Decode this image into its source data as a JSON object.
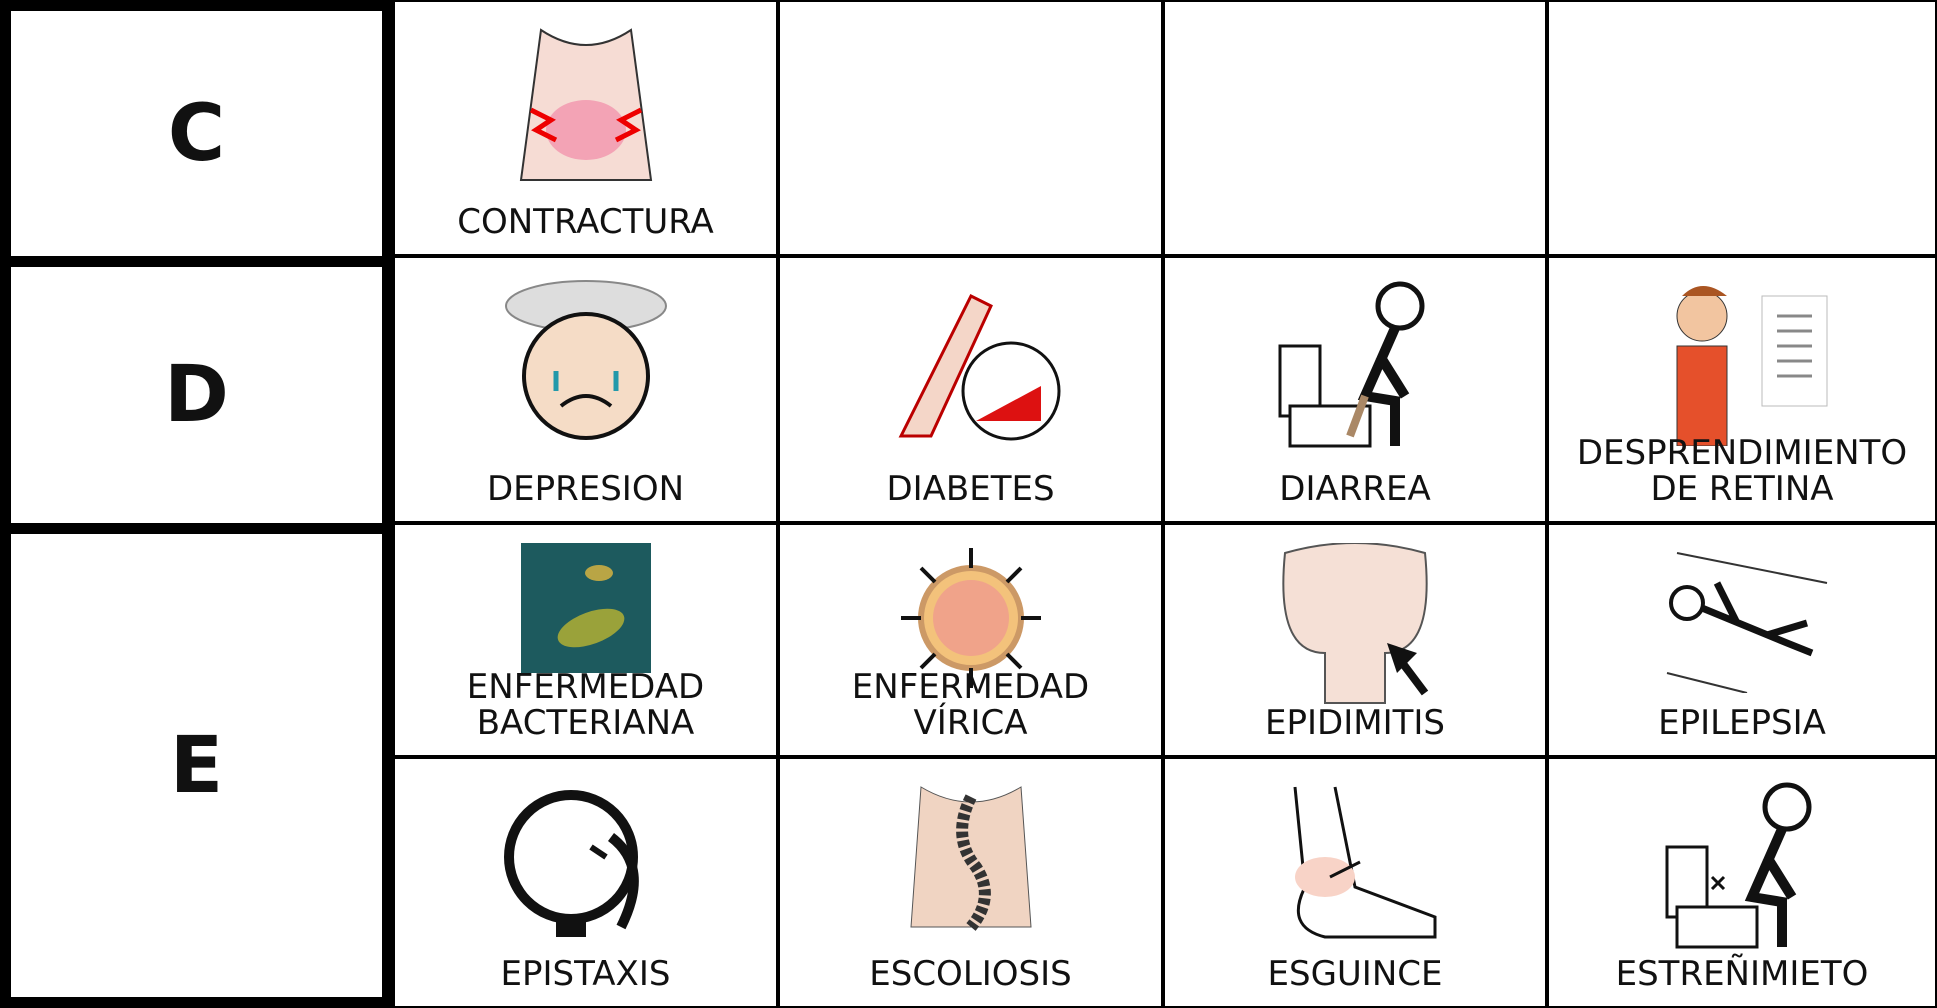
{
  "sections": [
    {
      "letter": "C",
      "rows": [
        [
          {
            "label": [
              "CONTRACTURA"
            ]
          },
          null,
          null,
          null
        ]
      ]
    },
    {
      "letter": "D",
      "rows": [
        [
          {
            "label": [
              "DEPRESION"
            ]
          },
          {
            "label": [
              "DIABETES"
            ]
          },
          {
            "label": [
              "DIARREA"
            ]
          },
          {
            "label": [
              "DESPRENDIMIENTO",
              "DE RETINA"
            ]
          }
        ]
      ]
    },
    {
      "letter": "E",
      "rows": [
        [
          {
            "label": [
              "ENFERMEDAD",
              "BACTERIANA"
            ]
          },
          {
            "label": [
              "ENFERMEDAD",
              "VÍRICA"
            ]
          },
          {
            "label": [
              "EPIDIMITIS"
            ]
          },
          {
            "label": [
              "EPILEPSIA"
            ]
          }
        ],
        [
          {
            "label": [
              "EPISTAXIS"
            ]
          },
          {
            "label": [
              "ESCOLIOSIS"
            ]
          },
          {
            "label": [
              "ESGUINCE"
            ]
          },
          {
            "label": [
              "ESTREÑIMIETO"
            ]
          }
        ]
      ]
    }
  ]
}
